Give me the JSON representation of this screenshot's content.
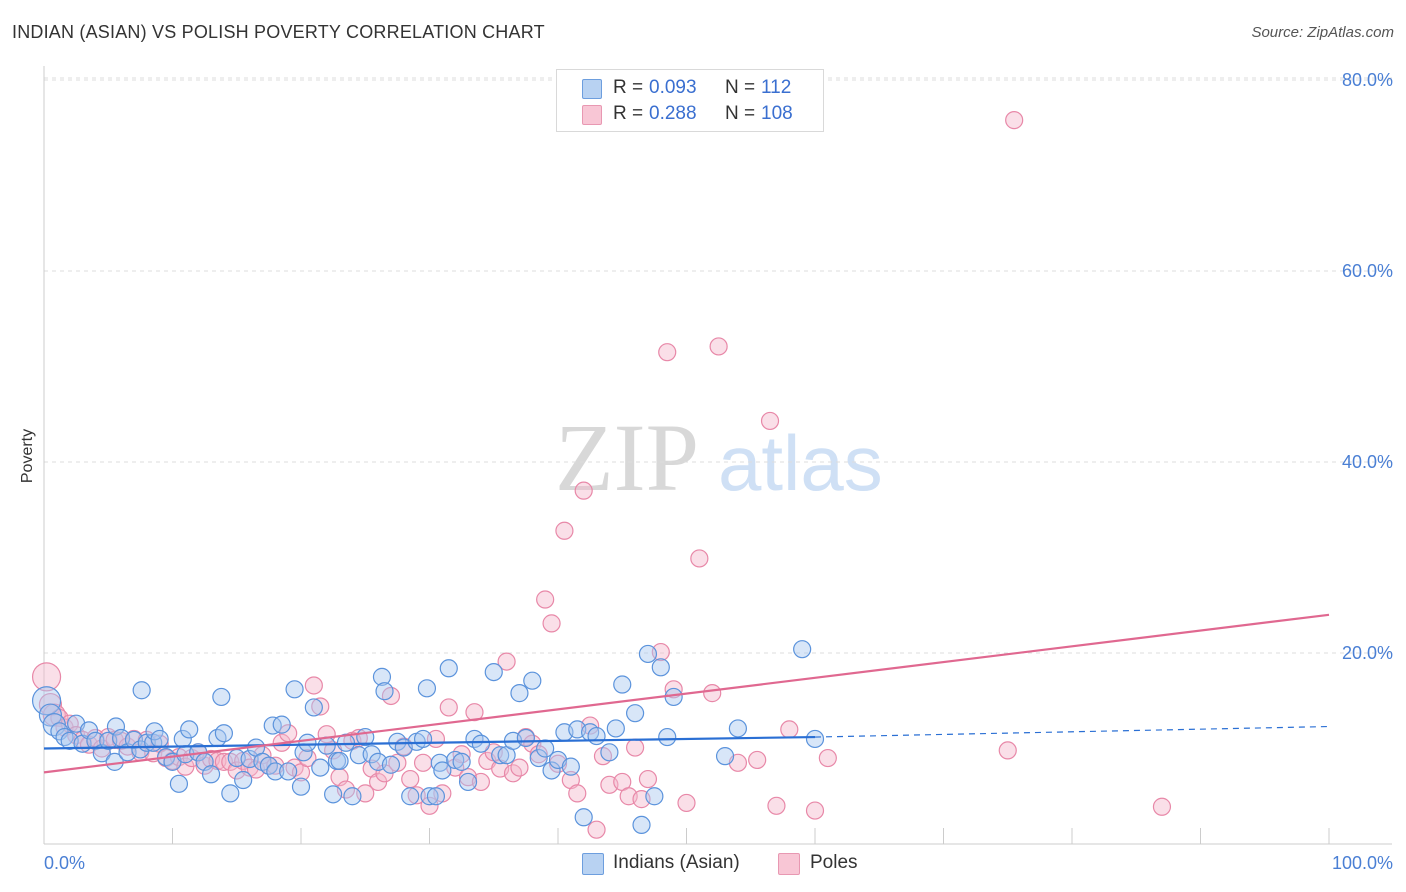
{
  "title": "INDIAN (ASIAN) VS POLISH POVERTY CORRELATION CHART",
  "source": "Source: ZipAtlas.com",
  "watermark": {
    "zip": "ZIP",
    "atlas": "atlas"
  },
  "colors": {
    "blue_fill": "#a8c8f0",
    "blue_stroke": "#5b93dc",
    "blue_line": "#2a6fd4",
    "pink_fill": "#f5b8cb",
    "pink_stroke": "#e888a8",
    "pink_line": "#e06890",
    "tick_text": "#4a7fd4",
    "grid": "#dddddd"
  },
  "legend": {
    "rows": [
      {
        "r_label": "R =",
        "r_value": "0.093",
        "n_label": "N =",
        "n_value": "112"
      },
      {
        "r_label": "R =",
        "r_value": "0.288",
        "n_label": "N =",
        "n_value": "108"
      }
    ]
  },
  "bottom_legend": {
    "series1": "Indians (Asian)",
    "series2": "Poles"
  },
  "chart_data": {
    "type": "scatter",
    "title": "INDIAN (ASIAN) VS POLISH POVERTY CORRELATION CHART",
    "xlabel": "",
    "ylabel": "Poverty",
    "xlim": [
      0,
      100
    ],
    "ylim": [
      0,
      80
    ],
    "x_tick_labels": [
      "0.0%",
      "100.0%"
    ],
    "y_ticks": [
      20,
      40,
      60,
      80
    ],
    "y_tick_labels": [
      "20.0%",
      "40.0%",
      "60.0%",
      "80.0%"
    ],
    "grid": true,
    "legend_position": "top-center",
    "series": [
      {
        "name": "Indians (Asian)",
        "r": 0.093,
        "n": 112,
        "trend": {
          "x0": 0,
          "y0": 10.0,
          "x1": 60,
          "y1": 11.2,
          "dashed_to_x": 100,
          "dashed_to_y": 12.3
        },
        "points": [
          [
            0.2,
            15.0
          ],
          [
            0.5,
            13.5
          ],
          [
            0.8,
            12.5
          ],
          [
            1.2,
            11.8
          ],
          [
            1.6,
            11.2
          ],
          [
            2.0,
            10.8
          ],
          [
            2.5,
            12.6
          ],
          [
            3.0,
            10.5
          ],
          [
            3.5,
            11.9
          ],
          [
            4.0,
            10.8
          ],
          [
            4.5,
            9.5
          ],
          [
            5.0,
            10.8
          ],
          [
            5.5,
            8.6
          ],
          [
            5.6,
            12.3
          ],
          [
            6.0,
            11.1
          ],
          [
            6.5,
            9.6
          ],
          [
            7.0,
            10.9
          ],
          [
            7.5,
            9.9
          ],
          [
            7.6,
            16.1
          ],
          [
            8.0,
            10.6
          ],
          [
            8.5,
            10.6
          ],
          [
            8.6,
            11.8
          ],
          [
            9.0,
            11.0
          ],
          [
            9.5,
            9.1
          ],
          [
            10.0,
            8.6
          ],
          [
            10.5,
            6.3
          ],
          [
            10.8,
            11.0
          ],
          [
            11.0,
            9.4
          ],
          [
            11.3,
            12.0
          ],
          [
            12.0,
            9.6
          ],
          [
            12.5,
            8.6
          ],
          [
            13.0,
            7.3
          ],
          [
            13.5,
            11.1
          ],
          [
            13.8,
            15.4
          ],
          [
            14.0,
            11.6
          ],
          [
            14.5,
            5.3
          ],
          [
            15.0,
            9.0
          ],
          [
            15.5,
            6.7
          ],
          [
            16.0,
            8.9
          ],
          [
            16.5,
            10.1
          ],
          [
            17.0,
            8.6
          ],
          [
            17.5,
            8.2
          ],
          [
            17.8,
            12.4
          ],
          [
            18.0,
            7.6
          ],
          [
            18.5,
            12.5
          ],
          [
            19.0,
            7.6
          ],
          [
            19.5,
            16.2
          ],
          [
            20.0,
            6.0
          ],
          [
            20.2,
            9.6
          ],
          [
            20.5,
            10.6
          ],
          [
            21.0,
            14.3
          ],
          [
            21.5,
            8.0
          ],
          [
            22.0,
            10.3
          ],
          [
            22.5,
            5.2
          ],
          [
            22.8,
            8.7
          ],
          [
            23.0,
            8.7
          ],
          [
            23.5,
            10.6
          ],
          [
            24.0,
            5.0
          ],
          [
            24.5,
            9.3
          ],
          [
            25.0,
            11.2
          ],
          [
            25.5,
            9.4
          ],
          [
            26.0,
            8.6
          ],
          [
            26.3,
            17.5
          ],
          [
            26.5,
            16.0
          ],
          [
            27.0,
            8.3
          ],
          [
            27.5,
            10.7
          ],
          [
            28.0,
            10.1
          ],
          [
            28.5,
            5.0
          ],
          [
            29.0,
            10.7
          ],
          [
            29.5,
            11.0
          ],
          [
            29.8,
            16.3
          ],
          [
            30.0,
            5.0
          ],
          [
            30.5,
            5.0
          ],
          [
            30.8,
            8.5
          ],
          [
            31.0,
            7.7
          ],
          [
            31.5,
            18.4
          ],
          [
            32.0,
            8.8
          ],
          [
            32.5,
            8.6
          ],
          [
            33.0,
            6.5
          ],
          [
            33.5,
            11.0
          ],
          [
            34.0,
            10.5
          ],
          [
            35.0,
            18.0
          ],
          [
            35.5,
            9.3
          ],
          [
            36.0,
            9.3
          ],
          [
            36.5,
            10.8
          ],
          [
            37.0,
            15.8
          ],
          [
            37.5,
            11.1
          ],
          [
            38.0,
            17.1
          ],
          [
            38.5,
            9.0
          ],
          [
            39.0,
            10.0
          ],
          [
            39.5,
            7.7
          ],
          [
            40.0,
            8.8
          ],
          [
            40.5,
            11.7
          ],
          [
            41.0,
            8.1
          ],
          [
            41.5,
            12.0
          ],
          [
            42.0,
            2.8
          ],
          [
            42.5,
            11.7
          ],
          [
            43.0,
            11.3
          ],
          [
            44.0,
            9.6
          ],
          [
            44.5,
            12.1
          ],
          [
            45.0,
            16.7
          ],
          [
            46.0,
            13.7
          ],
          [
            46.5,
            2.0
          ],
          [
            47.0,
            19.9
          ],
          [
            47.5,
            5.0
          ],
          [
            48.0,
            18.5
          ],
          [
            48.5,
            11.2
          ],
          [
            49.0,
            15.4
          ],
          [
            53.0,
            9.2
          ],
          [
            54.0,
            12.1
          ],
          [
            59.0,
            20.4
          ],
          [
            60.0,
            11.0
          ]
        ]
      },
      {
        "name": "Poles",
        "r": 0.288,
        "n": 108,
        "trend": {
          "x0": 0,
          "y0": 7.5,
          "x1": 100,
          "y1": 24.0
        },
        "points": [
          [
            0.2,
            17.5
          ],
          [
            0.5,
            14.6
          ],
          [
            0.8,
            13.5
          ],
          [
            1.2,
            13.2
          ],
          [
            1.6,
            12.2
          ],
          [
            2.0,
            12.6
          ],
          [
            2.5,
            11.4
          ],
          [
            3.0,
            10.9
          ],
          [
            3.5,
            10.4
          ],
          [
            4.0,
            11.1
          ],
          [
            4.5,
            10.0
          ],
          [
            5.0,
            11.2
          ],
          [
            5.5,
            10.9
          ],
          [
            6.0,
            10.8
          ],
          [
            6.5,
            10.2
          ],
          [
            7.0,
            11.0
          ],
          [
            7.5,
            9.6
          ],
          [
            8.0,
            10.9
          ],
          [
            8.5,
            9.5
          ],
          [
            9.0,
            10.5
          ],
          [
            9.5,
            9.0
          ],
          [
            10.0,
            8.7
          ],
          [
            10.5,
            9.1
          ],
          [
            11.0,
            8.1
          ],
          [
            11.5,
            9.0
          ],
          [
            12.0,
            9.6
          ],
          [
            12.5,
            8.2
          ],
          [
            13.0,
            8.9
          ],
          [
            13.5,
            8.7
          ],
          [
            14.0,
            8.6
          ],
          [
            14.5,
            8.6
          ],
          [
            15.0,
            7.7
          ],
          [
            15.5,
            8.7
          ],
          [
            16.0,
            8.0
          ],
          [
            16.5,
            7.8
          ],
          [
            17.0,
            9.3
          ],
          [
            17.5,
            8.2
          ],
          [
            18.0,
            8.2
          ],
          [
            18.5,
            10.6
          ],
          [
            19.0,
            11.6
          ],
          [
            19.5,
            8.0
          ],
          [
            20.0,
            7.5
          ],
          [
            20.5,
            9.0
          ],
          [
            21.0,
            16.6
          ],
          [
            21.5,
            14.4
          ],
          [
            22.0,
            11.5
          ],
          [
            22.5,
            9.8
          ],
          [
            23.0,
            7.0
          ],
          [
            23.5,
            5.7
          ],
          [
            24.0,
            10.8
          ],
          [
            24.5,
            11.1
          ],
          [
            25.0,
            5.3
          ],
          [
            25.5,
            7.9
          ],
          [
            26.0,
            6.5
          ],
          [
            26.5,
            7.4
          ],
          [
            27.0,
            15.5
          ],
          [
            27.5,
            8.5
          ],
          [
            28.0,
            10.2
          ],
          [
            28.5,
            6.8
          ],
          [
            29.0,
            5.1
          ],
          [
            29.5,
            8.5
          ],
          [
            30.0,
            4.0
          ],
          [
            30.5,
            11.0
          ],
          [
            31.0,
            5.3
          ],
          [
            31.5,
            14.3
          ],
          [
            32.0,
            8.0
          ],
          [
            32.5,
            9.4
          ],
          [
            33.0,
            7.0
          ],
          [
            33.5,
            13.8
          ],
          [
            34.0,
            6.5
          ],
          [
            34.5,
            8.7
          ],
          [
            35.0,
            9.6
          ],
          [
            35.5,
            7.9
          ],
          [
            36.0,
            19.1
          ],
          [
            36.5,
            7.4
          ],
          [
            37.0,
            8.0
          ],
          [
            37.5,
            11.2
          ],
          [
            38.0,
            10.5
          ],
          [
            38.5,
            9.4
          ],
          [
            39.0,
            25.6
          ],
          [
            39.5,
            23.1
          ],
          [
            40.0,
            8.4
          ],
          [
            40.5,
            32.8
          ],
          [
            41.0,
            6.7
          ],
          [
            41.5,
            5.3
          ],
          [
            42.0,
            37.0
          ],
          [
            42.5,
            12.4
          ],
          [
            43.0,
            1.5
          ],
          [
            43.5,
            9.2
          ],
          [
            44.0,
            6.2
          ],
          [
            45.0,
            6.5
          ],
          [
            45.5,
            5.0
          ],
          [
            46.0,
            10.1
          ],
          [
            46.5,
            4.7
          ],
          [
            47.0,
            6.8
          ],
          [
            48.0,
            20.1
          ],
          [
            49.0,
            16.2
          ],
          [
            50.0,
            4.3
          ],
          [
            51.0,
            29.9
          ],
          [
            52.0,
            15.8
          ],
          [
            54.0,
            8.5
          ],
          [
            55.5,
            8.8
          ],
          [
            57.0,
            4.0
          ],
          [
            58.0,
            12.0
          ],
          [
            60.0,
            3.5
          ],
          [
            61.0,
            9.0
          ],
          [
            75.0,
            9.8
          ],
          [
            87.0,
            3.9
          ]
        ],
        "outliers": [
          [
            48.5,
            51.5
          ],
          [
            52.5,
            52.1
          ],
          [
            56.5,
            44.3
          ],
          [
            75.5,
            75.8
          ]
        ]
      }
    ]
  }
}
